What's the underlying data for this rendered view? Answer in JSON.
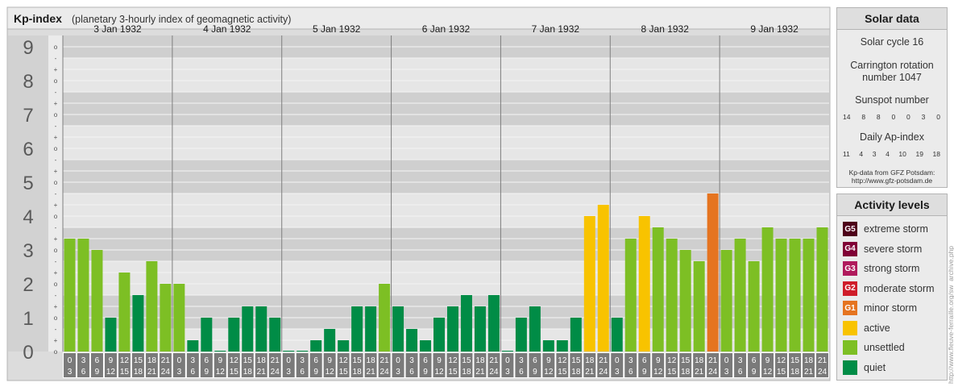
{
  "chart_data": {
    "type": "bar",
    "title": "Kp-index",
    "subtitle": "(planetary 3-hourly index of geomagnetic activity)",
    "ylim": [
      0,
      9
    ],
    "y_major_ticks": [
      "0",
      "1",
      "2",
      "3",
      "4",
      "5",
      "6",
      "7",
      "8",
      "9"
    ],
    "y_minor_labels": [
      "o",
      "+",
      "-",
      "o",
      "+",
      "-",
      "o",
      "+",
      "-",
      "o",
      "+",
      "-",
      "o",
      "+",
      "-",
      "o",
      "+",
      "-",
      "o",
      "+",
      "-",
      "o",
      "+",
      "-",
      "o",
      "+",
      "-",
      "o"
    ],
    "days": [
      "3 Jan 1932",
      "4 Jan 1932",
      "5 Jan 1932",
      "6 Jan 1932",
      "7 Jan 1932",
      "8 Jan 1932",
      "9 Jan 1932"
    ],
    "interval_start": [
      "0",
      "3",
      "6",
      "9",
      "12",
      "15",
      "18",
      "21"
    ],
    "interval_end": [
      "3",
      "6",
      "9",
      "12",
      "15",
      "18",
      "21",
      "24"
    ],
    "values": [
      3.333,
      3.333,
      3.0,
      1.0,
      2.333,
      1.667,
      2.667,
      2.0,
      2.0,
      0.333,
      1.0,
      0.0,
      1.0,
      1.333,
      1.333,
      1.0,
      0.0,
      0.0,
      0.333,
      0.667,
      0.333,
      1.333,
      1.333,
      2.0,
      1.333,
      0.667,
      0.333,
      1.0,
      1.333,
      1.667,
      1.333,
      1.667,
      0.0,
      1.0,
      1.333,
      0.333,
      0.333,
      1.0,
      4.0,
      4.333,
      1.0,
      3.333,
      4.0,
      3.667,
      3.333,
      3.0,
      2.667,
      4.667,
      3.0,
      3.333,
      2.667,
      3.667,
      3.333,
      3.333,
      3.333,
      3.667
    ],
    "grid": true
  },
  "solar": {
    "title": "Solar data",
    "cycle": "Solar cycle 16",
    "carrington_line1": "Carrington rotation",
    "carrington_line2": "number 1047",
    "sunspot_label": "Sunspot number",
    "sunspot_values": [
      "14",
      "8",
      "8",
      "0",
      "0",
      "3",
      "0"
    ],
    "ap_label": "Daily Ap-index",
    "ap_values": [
      "11",
      "4",
      "3",
      "4",
      "10",
      "19",
      "18"
    ],
    "credit_line1": "Kp-data from GFZ Potsdam:",
    "credit_line2": "http://www.gfz-potsdam.de"
  },
  "activity": {
    "title": "Activity levels",
    "levels": [
      {
        "code": "G5",
        "label": "extreme storm",
        "color": "#4d0019"
      },
      {
        "code": "G4",
        "label": "severe storm",
        "color": "#800035"
      },
      {
        "code": "G3",
        "label": "strong storm",
        "color": "#b01a5c"
      },
      {
        "code": "G2",
        "label": "moderate storm",
        "color": "#cf1d2a"
      },
      {
        "code": "G1",
        "label": "minor storm",
        "color": "#e57420"
      },
      {
        "code": "",
        "label": "active",
        "color": "#f8c300"
      },
      {
        "code": "",
        "label": "unsettled",
        "color": "#7dbf24"
      },
      {
        "code": "",
        "label": "quiet",
        "color": "#008c46"
      }
    ]
  },
  "watermark": "http://www.fleuve-ferraille.org/sw_archive.php",
  "colors": {
    "quiet": "#008c46",
    "unsettled": "#7dbf24",
    "active": "#f8c300",
    "minor_storm": "#e57420"
  }
}
